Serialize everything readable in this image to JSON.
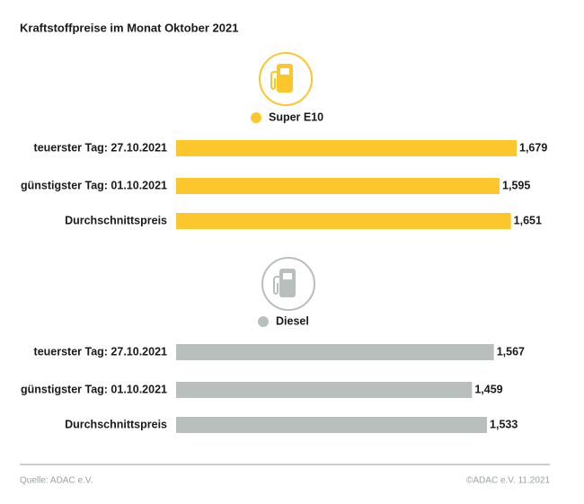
{
  "title": "Kraftstoffpreise im Monat Oktober 2021",
  "chart_data": [
    {
      "type": "bar",
      "orientation": "horizontal",
      "categories": [
        "teuerster Tag: 27.10.2021",
        "günstigster Tag: 01.10.2021",
        "Durchschnittspreis"
      ],
      "series": [
        {
          "name": "Super E10",
          "color": "#fcc72c",
          "values": [
            1.679,
            1.595,
            1.651
          ],
          "value_labels": [
            "1,679",
            "1,595",
            "1,651"
          ]
        }
      ]
    },
    {
      "type": "bar",
      "orientation": "horizontal",
      "categories": [
        "teuerster Tag: 27.10.2021",
        "günstigster Tag: 01.10.2021",
        "Durchschnittspreis"
      ],
      "series": [
        {
          "name": "Diesel",
          "color": "#b9bfbd",
          "values": [
            1.567,
            1.459,
            1.533
          ],
          "value_labels": [
            "1,567",
            "1,459",
            "1,533"
          ]
        }
      ]
    }
  ],
  "footer": {
    "source": "Quelle: ADAC e.V.",
    "copyright": "©ADAC e.V. 11.2021"
  }
}
